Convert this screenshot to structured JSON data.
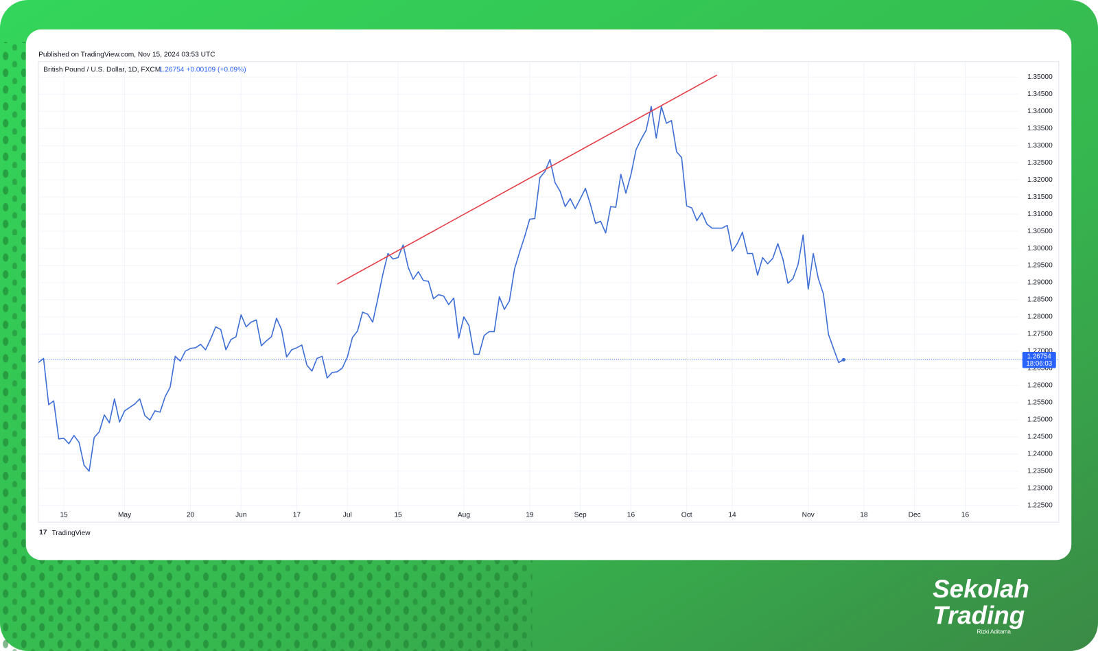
{
  "header": {
    "published": "Published on TradingView.com, Nov 15, 2024 03:53 UTC",
    "symbol": "British Pound / U.S. Dollar, 1D, FXCM",
    "price": "1.26754",
    "change": "+0.00109 (+0.09%)",
    "footer_logo": "TradingView"
  },
  "brand": {
    "line1": "Sekolah",
    "line2": "Trading",
    "author": "Rizki Aditama"
  },
  "chart_data": {
    "type": "line",
    "series": [
      {
        "name": "GBP/USD",
        "color": "#3f6fd6",
        "values": [
          1.2667,
          1.2679,
          1.2544,
          1.2555,
          1.2444,
          1.2446,
          1.243,
          1.2454,
          1.2434,
          1.2367,
          1.235,
          1.2448,
          1.2465,
          1.2514,
          1.2491,
          1.2561,
          1.2493,
          1.2526,
          1.2536,
          1.2546,
          1.2561,
          1.2512,
          1.2499,
          1.2526,
          1.2522,
          1.2567,
          1.2595,
          1.2685,
          1.2671,
          1.27,
          1.2708,
          1.271,
          1.272,
          1.2704,
          1.2736,
          1.2771,
          1.2763,
          1.2704,
          1.2734,
          1.2742,
          1.2806,
          1.2771,
          1.2785,
          1.2791,
          1.2716,
          1.273,
          1.2742,
          1.2796,
          1.2763,
          1.2683,
          1.2704,
          1.271,
          1.2718,
          1.2659,
          1.2642,
          1.2679,
          1.2685,
          1.2622,
          1.2638,
          1.264,
          1.2651,
          1.2683,
          1.274,
          1.2759,
          1.2814,
          1.2808,
          1.2785,
          1.2853,
          1.2924,
          1.2985,
          1.2969,
          1.2973,
          1.301,
          1.2945,
          1.291,
          1.2932,
          1.2906,
          1.2904,
          1.2853,
          1.2865,
          1.2861,
          1.2836,
          1.2855,
          1.2738,
          1.28,
          1.2775,
          1.2691,
          1.2691,
          1.2746,
          1.2757,
          1.2757,
          1.2859,
          1.2822,
          1.2847,
          1.294,
          1.2989,
          1.3034,
          1.3085,
          1.3087,
          1.3206,
          1.3224,
          1.3259,
          1.3192,
          1.3167,
          1.3122,
          1.3145,
          1.3116,
          1.3145,
          1.3175,
          1.3128,
          1.3073,
          1.3079,
          1.3045,
          1.3122,
          1.312,
          1.3216,
          1.3161,
          1.3216,
          1.3288,
          1.3318,
          1.3345,
          1.3414,
          1.3322,
          1.3414,
          1.3365,
          1.3373,
          1.3282,
          1.3265,
          1.3124,
          1.3118,
          1.3081,
          1.3104,
          1.3071,
          1.3059,
          1.3059,
          1.3059,
          1.3067,
          1.2992,
          1.3014,
          1.3047,
          1.2985,
          1.2985,
          1.2922,
          1.2973,
          1.2955,
          1.2971,
          1.3014,
          1.2969,
          1.2898,
          1.2912,
          1.2953,
          1.3039,
          1.2881,
          1.2985,
          1.2912,
          1.2867,
          1.2749,
          1.2708,
          1.2667,
          1.2675
        ]
      }
    ],
    "trendline": {
      "x": [
        59,
        134
      ],
      "values": [
        1.2896,
        1.3506
      ],
      "color": "#e5404a"
    },
    "price_line": {
      "value": 1.26754,
      "label": "1.26754",
      "countdown": "18:06:03",
      "color": "#2962ff"
    },
    "xlim": [
      0,
      193.6
    ],
    "xticks": [
      {
        "value": 5,
        "label": "15"
      },
      {
        "value": 17,
        "label": "May"
      },
      {
        "value": 30,
        "label": "20"
      },
      {
        "value": 40,
        "label": "Jun"
      },
      {
        "value": 51,
        "label": "17"
      },
      {
        "value": 61,
        "label": "Jul"
      },
      {
        "value": 71,
        "label": "15"
      },
      {
        "value": 84,
        "label": "Aug"
      },
      {
        "value": 97,
        "label": "19"
      },
      {
        "value": 107,
        "label": "Sep"
      },
      {
        "value": 117,
        "label": "16"
      },
      {
        "value": 128,
        "label": "Oct"
      },
      {
        "value": 137,
        "label": "14"
      },
      {
        "value": 152,
        "label": "Nov"
      },
      {
        "value": 163,
        "label": "18"
      },
      {
        "value": 173,
        "label": "Dec"
      },
      {
        "value": 183,
        "label": "16"
      }
    ],
    "ylim": [
      1.2201,
      1.3545
    ],
    "yticks": [
      {
        "value": 1.35,
        "label": "1.35000"
      },
      {
        "value": 1.345,
        "label": "1.34500"
      },
      {
        "value": 1.34,
        "label": "1.34000"
      },
      {
        "value": 1.335,
        "label": "1.33500"
      },
      {
        "value": 1.33,
        "label": "1.33000"
      },
      {
        "value": 1.325,
        "label": "1.32500"
      },
      {
        "value": 1.32,
        "label": "1.32000"
      },
      {
        "value": 1.315,
        "label": "1.31500"
      },
      {
        "value": 1.31,
        "label": "1.31000"
      },
      {
        "value": 1.305,
        "label": "1.30500"
      },
      {
        "value": 1.3,
        "label": "1.30000"
      },
      {
        "value": 1.295,
        "label": "1.29500"
      },
      {
        "value": 1.29,
        "label": "1.29000"
      },
      {
        "value": 1.285,
        "label": "1.28500"
      },
      {
        "value": 1.28,
        "label": "1.28000"
      },
      {
        "value": 1.275,
        "label": "1.27500"
      },
      {
        "value": 1.27,
        "label": "1.27000"
      },
      {
        "value": 1.265,
        "label": "1.26500"
      },
      {
        "value": 1.26,
        "label": "1.26000"
      },
      {
        "value": 1.255,
        "label": "1.25500"
      },
      {
        "value": 1.25,
        "label": "1.25000"
      },
      {
        "value": 1.245,
        "label": "1.24500"
      },
      {
        "value": 1.24,
        "label": "1.24000"
      },
      {
        "value": 1.235,
        "label": "1.23500"
      },
      {
        "value": 1.23,
        "label": "1.23000"
      },
      {
        "value": 1.225,
        "label": "1.22500"
      }
    ],
    "grid": true
  }
}
